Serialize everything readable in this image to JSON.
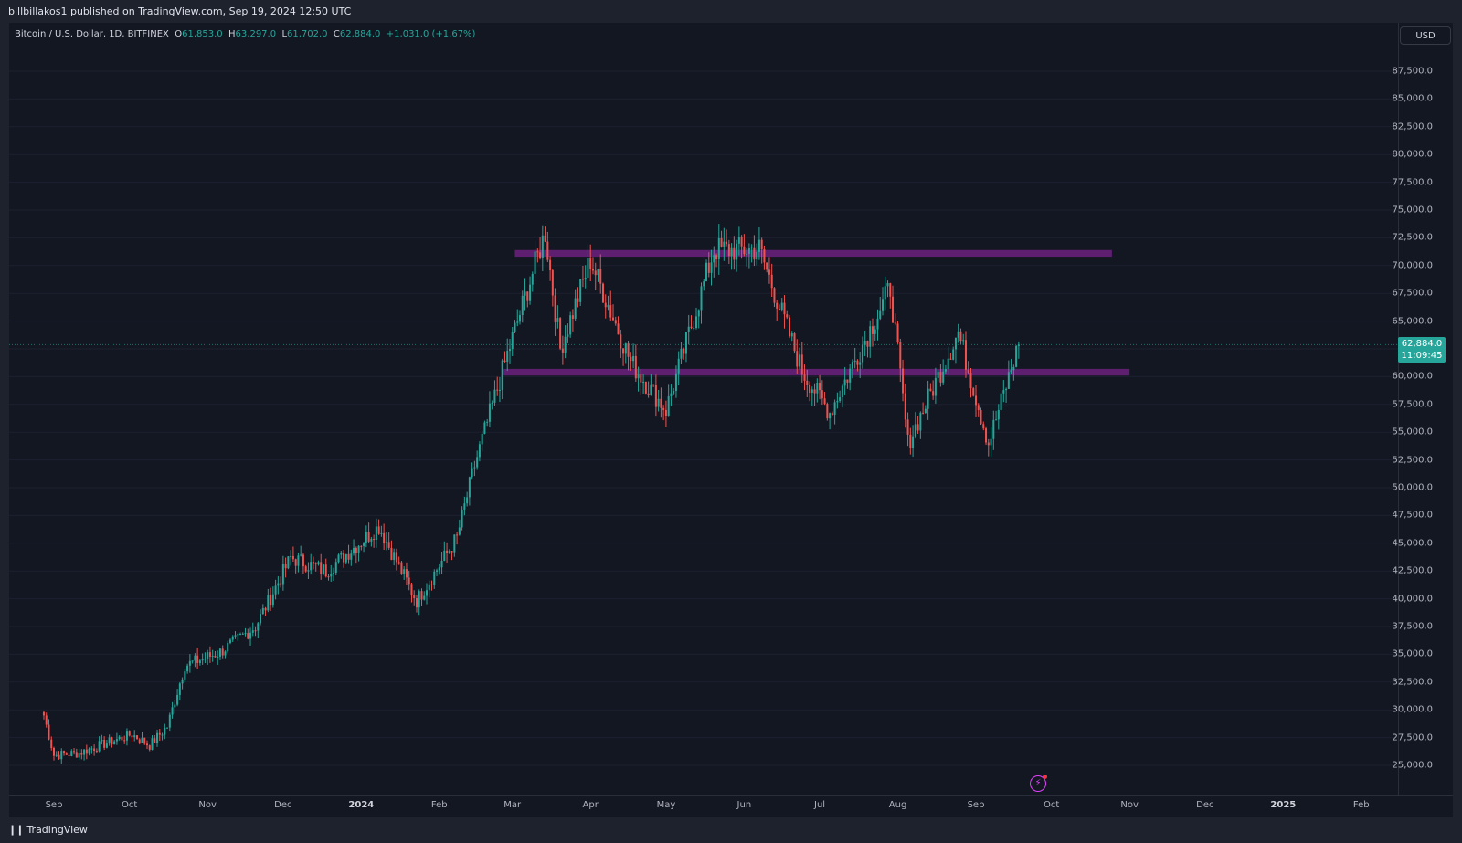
{
  "header": {
    "publish_line": "billbillakos1 published on TradingView.com, Sep 19, 2024 12:50 UTC"
  },
  "legend": {
    "symbol": "Bitcoin / U.S. Dollar, 1D, BITFINEX",
    "open_label": "O",
    "open": "61,853.0",
    "high_label": "H",
    "high": "63,297.0",
    "low_label": "L",
    "low": "61,702.0",
    "close_label": "C",
    "close": "62,884.0",
    "change": "+1,031.0 (+1.67%)"
  },
  "currency_button": "USD",
  "last_price": {
    "price": "62,884.0",
    "countdown": "11:09:45"
  },
  "y_axis": {
    "ticks": [
      "87,500.0",
      "85,000.0",
      "82,500.0",
      "80,000.0",
      "77,500.0",
      "75,000.0",
      "72,500.0",
      "70,000.0",
      "67,500.0",
      "65,000.0",
      "60,000.0",
      "57,500.0",
      "55,000.0",
      "52,500.0",
      "50,000.0",
      "47,500.0",
      "45,000.0",
      "42,500.0",
      "40,000.0",
      "37,500.0",
      "35,000.0",
      "32,500.0",
      "30,000.0",
      "27,500.0",
      "25,000.0"
    ]
  },
  "x_axis": {
    "ticks": [
      {
        "label": "Sep",
        "bold": false
      },
      {
        "label": "Oct",
        "bold": false
      },
      {
        "label": "Nov",
        "bold": false
      },
      {
        "label": "Dec",
        "bold": false
      },
      {
        "label": "2024",
        "bold": true
      },
      {
        "label": "Feb",
        "bold": false
      },
      {
        "label": "Mar",
        "bold": false
      },
      {
        "label": "Apr",
        "bold": false
      },
      {
        "label": "May",
        "bold": false
      },
      {
        "label": "Jun",
        "bold": false
      },
      {
        "label": "Jul",
        "bold": false
      },
      {
        "label": "Aug",
        "bold": false
      },
      {
        "label": "Sep",
        "bold": false
      },
      {
        "label": "Oct",
        "bold": false
      },
      {
        "label": "Nov",
        "bold": false
      },
      {
        "label": "Dec",
        "bold": false
      },
      {
        "label": "2025",
        "bold": true
      },
      {
        "label": "Feb",
        "bold": false
      }
    ]
  },
  "footer": {
    "brand": "TradingView",
    "logo": "tv-logo-icon"
  },
  "colors": {
    "up": "#26a69a",
    "down": "#ef5350",
    "zone": "#9c27b0",
    "background": "#131722"
  },
  "chart_data": {
    "type": "candlestick",
    "interval": "1D",
    "y_range": [
      24000,
      89000
    ],
    "zones": [
      {
        "low": 70800,
        "high": 71400,
        "from": "2024-03-02",
        "to": "2024-10-25"
      },
      {
        "low": 60100,
        "high": 60700,
        "from": "2024-02-26",
        "to": "2024-11-01"
      }
    ],
    "series": [
      {
        "name": "Bitcoin / U.S. Dollar",
        "points": [
          [
            "2023-08-28",
            29500
          ],
          [
            "2023-09-01",
            25900
          ],
          [
            "2023-09-11",
            26100
          ],
          [
            "2023-09-18",
            26700
          ],
          [
            "2023-10-02",
            27800
          ],
          [
            "2023-10-09",
            26800
          ],
          [
            "2023-10-16",
            28500
          ],
          [
            "2023-10-23",
            34000
          ],
          [
            "2023-11-06",
            35200
          ],
          [
            "2023-11-20",
            37500
          ],
          [
            "2023-12-04",
            43700
          ],
          [
            "2023-12-18",
            42500
          ],
          [
            "2024-01-08",
            46500
          ],
          [
            "2024-01-23",
            39800
          ],
          [
            "2024-02-08",
            45500
          ],
          [
            "2024-02-15",
            52000
          ],
          [
            "2024-02-28",
            62000
          ],
          [
            "2024-03-14",
            73000
          ],
          [
            "2024-03-20",
            62500
          ],
          [
            "2024-04-01",
            70500
          ],
          [
            "2024-04-17",
            61300
          ],
          [
            "2024-05-01",
            57000
          ],
          [
            "2024-05-20",
            71400
          ],
          [
            "2024-06-07",
            71500
          ],
          [
            "2024-06-24",
            60500
          ],
          [
            "2024-07-05",
            56800
          ],
          [
            "2024-07-29",
            68000
          ],
          [
            "2024-08-05",
            54000
          ],
          [
            "2024-08-25",
            64000
          ],
          [
            "2024-09-06",
            54000
          ],
          [
            "2024-09-18",
            62884
          ]
        ]
      }
    ]
  }
}
